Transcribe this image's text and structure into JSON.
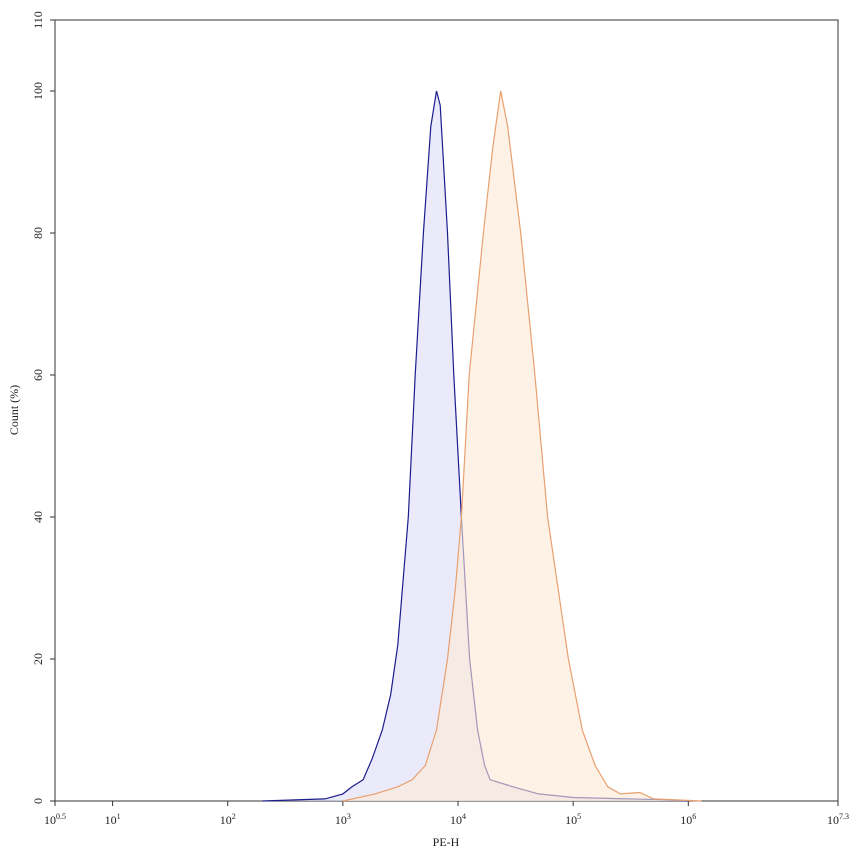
{
  "chart_data": {
    "type": "area",
    "x_label": "PE-H",
    "y_label": "Count (%)",
    "xscale": "log",
    "xlim": [
      3.1623,
      19952623
    ],
    "xticks": [
      {
        "value": 3.1623,
        "label": "10",
        "exponent": "0.5"
      },
      {
        "value": 10,
        "label": "10",
        "exponent": "1"
      },
      {
        "value": 100,
        "label": "10",
        "exponent": "2"
      },
      {
        "value": 1000,
        "label": "10",
        "exponent": "3"
      },
      {
        "value": 10000,
        "label": "10",
        "exponent": "4"
      },
      {
        "value": 100000,
        "label": "10",
        "exponent": "5"
      },
      {
        "value": 1000000,
        "label": "10",
        "exponent": "6"
      },
      {
        "value": 19952623,
        "label": "10",
        "exponent": "7.3"
      }
    ],
    "ylim": [
      0,
      110
    ],
    "yticks": [
      0,
      20,
      40,
      60,
      80,
      100,
      110
    ],
    "series": [
      {
        "color": "#1c1c8c",
        "fill": "#dcdcf8",
        "x": [
          200,
          700,
          1000,
          1200,
          1500,
          1800,
          2200,
          2600,
          3000,
          3700,
          4250,
          5000,
          5800,
          6500,
          7000,
          8100,
          9200,
          10700,
          12600,
          14800,
          17000,
          19000,
          30000,
          50000,
          100000,
          300000,
          600000,
          1000000
        ],
        "values": [
          0,
          0.3,
          1,
          2,
          3,
          6,
          10,
          15,
          22,
          40,
          60,
          80,
          95,
          100,
          98,
          80,
          60,
          40,
          20,
          10,
          5,
          3,
          2,
          1,
          0.5,
          0.3,
          0.2,
          0
        ]
      },
      {
        "color": "#e8a070",
        "fill": "#fde9d6",
        "x": [
          1000,
          1900,
          3000,
          4000,
          5200,
          6500,
          8100,
          9500,
          10700,
          12500,
          16600,
          20000,
          23500,
          27000,
          35000,
          46500,
          60000,
          91000,
          120000,
          155000,
          200000,
          257000,
          380000,
          500000,
          1300000
        ],
        "values": [
          0,
          1,
          2,
          3,
          5,
          10,
          20,
          30,
          40,
          60,
          80,
          92,
          100,
          95,
          80,
          60,
          40,
          20,
          10,
          5,
          2,
          1,
          1.2,
          0.3,
          0
        ]
      }
    ]
  }
}
